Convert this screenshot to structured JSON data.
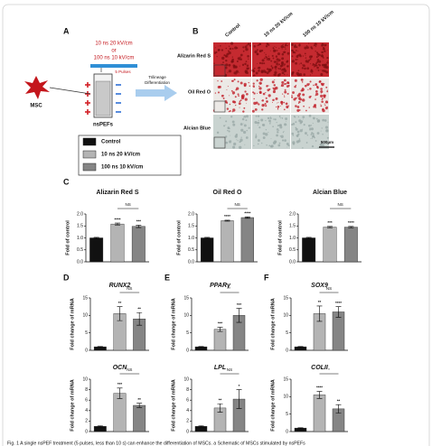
{
  "panels": [
    "A",
    "B",
    "C",
    "D",
    "E",
    "F"
  ],
  "diagram": {
    "pulse_params": [
      "10 ns 20 kV/cm",
      "or",
      "100 ns 10 kV/cm"
    ],
    "pulses": "5 Pulses",
    "cell": "MSC",
    "device": "nsPEFs",
    "arrow_label": [
      "Trilineage",
      "Differentiation"
    ]
  },
  "legend": {
    "series": [
      {
        "name": "Control",
        "color": "#111111"
      },
      {
        "name": "10 ns 20 kV/cm",
        "color": "#b4b4b4"
      },
      {
        "name": "100 ns 10 kV/cm",
        "color": "#858585"
      }
    ]
  },
  "micrographs": {
    "columns": [
      "Control",
      "10 ns 20 kV/cm",
      "100 ns 10 kV/cm"
    ],
    "rows": [
      "Alizarin Red S",
      "Oil Red O",
      "Alcian Blue"
    ],
    "scale_bar": "500μm"
  },
  "chart_data": [
    {
      "type": "bar",
      "title": "Alizarin Red S",
      "ylabel": "Fold of control",
      "values": [
        1.0,
        1.58,
        1.48
      ],
      "errors": [
        0.02,
        0.04,
        0.05
      ],
      "significance": [
        null,
        "****",
        "***"
      ],
      "bracket": "NS",
      "ylim": [
        0,
        2.0
      ],
      "yticks": [
        {
          "value": 0,
          "label": "0.0"
        },
        {
          "value": 0.5,
          "label": "0.5"
        },
        {
          "value": 1.0,
          "label": "1.0"
        },
        {
          "value": 1.5,
          "label": "1.5"
        },
        {
          "value": 2.0,
          "label": "2.0"
        }
      ],
      "title_style": "normal"
    },
    {
      "type": "bar",
      "title": "Oil Red O",
      "ylabel": "Fold of control",
      "values": [
        1.0,
        1.72,
        1.85
      ],
      "errors": [
        0.02,
        0.02,
        0.03
      ],
      "significance": [
        null,
        "****",
        "****"
      ],
      "bracket": "NS",
      "ylim": [
        0,
        2.0
      ],
      "yticks": [
        {
          "value": 0,
          "label": "0.0"
        },
        {
          "value": 0.5,
          "label": "0.5"
        },
        {
          "value": 1.0,
          "label": "1.0"
        },
        {
          "value": 1.5,
          "label": "1.5"
        },
        {
          "value": 2.0,
          "label": "2.0"
        }
      ],
      "title_style": "normal"
    },
    {
      "type": "bar",
      "title": "Alcian Blue",
      "ylabel": "Fold of control",
      "values": [
        1.0,
        1.45,
        1.45
      ],
      "errors": [
        0.02,
        0.03,
        0.03
      ],
      "significance": [
        null,
        "***",
        "****"
      ],
      "bracket": "NS",
      "ylim": [
        0,
        2.0
      ],
      "yticks": [
        {
          "value": 0,
          "label": "0.0"
        },
        {
          "value": 0.5,
          "label": "0.5"
        },
        {
          "value": 1.0,
          "label": "1.0"
        },
        {
          "value": 1.5,
          "label": "1.5"
        },
        {
          "value": 2.0,
          "label": "2.0"
        }
      ],
      "title_style": "normal"
    },
    {
      "type": "bar",
      "title": "RUNX2",
      "ylabel": "Fold change of mRNA",
      "values": [
        1,
        10.5,
        9
      ],
      "errors": [
        0.1,
        2,
        1.8
      ],
      "significance": [
        null,
        "**",
        "**"
      ],
      "bracket": "NS",
      "ylim": [
        0,
        15
      ],
      "yticks": [
        0,
        5,
        10,
        15
      ],
      "title_style": "italic"
    },
    {
      "type": "bar",
      "title": "PPARγ",
      "ylabel": "Fold change of mRNA",
      "values": [
        1,
        6,
        10
      ],
      "errors": [
        0.1,
        0.6,
        2
      ],
      "significance": [
        null,
        "***",
        "***"
      ],
      "bracket": "*",
      "ylim": [
        0,
        15
      ],
      "yticks": [
        0,
        5,
        10,
        15
      ],
      "title_style": "italic"
    },
    {
      "type": "bar",
      "title": "SOX9",
      "ylabel": "Fold change of mRNA",
      "values": [
        1,
        10.5,
        11
      ],
      "errors": [
        0.1,
        2.2,
        1.5
      ],
      "significance": [
        null,
        "**",
        "****"
      ],
      "bracket": "NS",
      "ylim": [
        0,
        15
      ],
      "yticks": [
        0,
        5,
        10,
        15
      ],
      "title_style": "italic"
    },
    {
      "type": "bar",
      "title": "OCN",
      "ylabel": "Fold change of mRNA",
      "values": [
        1,
        7.3,
        5
      ],
      "errors": [
        0.1,
        1,
        0.4
      ],
      "significance": [
        null,
        "***",
        "**"
      ],
      "bracket": "NS",
      "ylim": [
        0,
        10
      ],
      "yticks": [
        0,
        2,
        4,
        6,
        8,
        10
      ],
      "title_style": "italic"
    },
    {
      "type": "bar",
      "title": "LPL",
      "ylabel": "Fold change of mRNA",
      "values": [
        1,
        4.5,
        6.2
      ],
      "errors": [
        0.1,
        0.8,
        1.8
      ],
      "significance": [
        null,
        "**",
        "*"
      ],
      "bracket": "NS",
      "ylim": [
        0,
        10
      ],
      "yticks": [
        0,
        2,
        4,
        6,
        8,
        10
      ],
      "title_style": "italic"
    },
    {
      "type": "bar",
      "title": "COLII",
      "ylabel": "Fold change of mRNA",
      "values": [
        1,
        10.5,
        6.5
      ],
      "errors": [
        0.1,
        1,
        1.2
      ],
      "significance": [
        null,
        "****",
        "**"
      ],
      "bracket": "*",
      "ylim": [
        0,
        15
      ],
      "yticks": [
        0,
        5,
        10,
        15
      ],
      "title_style": "italic"
    }
  ],
  "caption": "Fig. 1 A single nsPEF treatment (5 pulses, less than 10 s) can enhance the differentiation of MSCs. a Schematic of MSCs stimulated by nsPEFs"
}
